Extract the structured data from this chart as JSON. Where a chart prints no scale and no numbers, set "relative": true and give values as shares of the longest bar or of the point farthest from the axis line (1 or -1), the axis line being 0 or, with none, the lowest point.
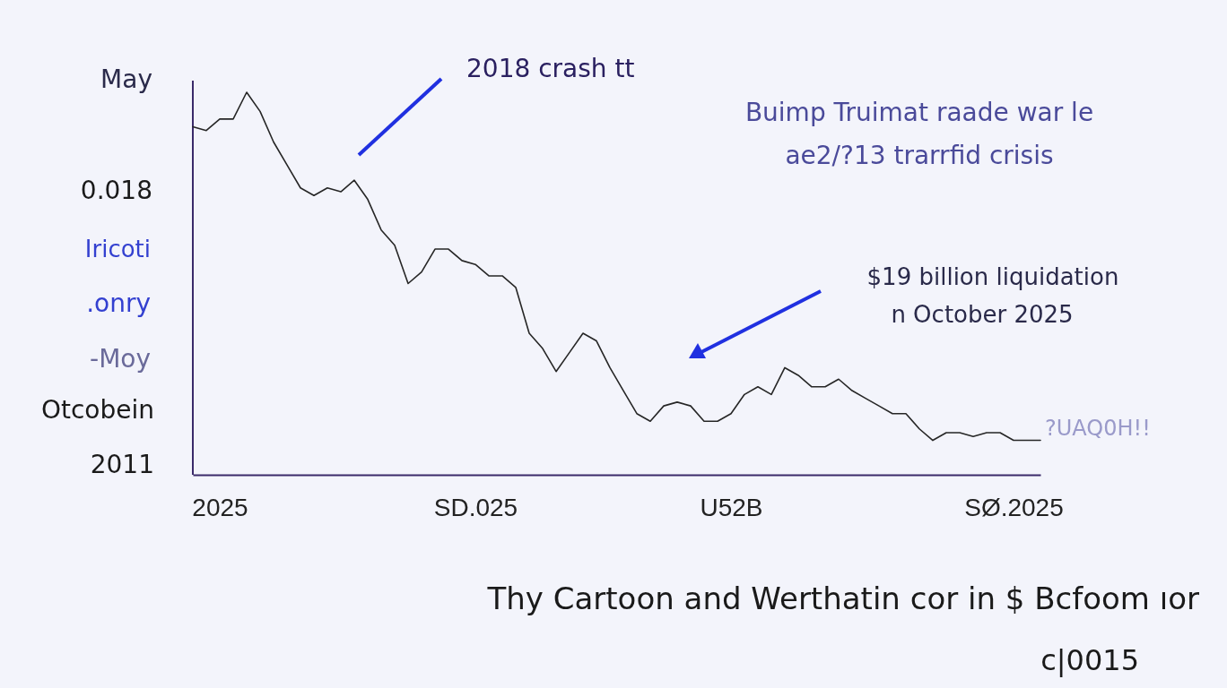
{
  "chart_data": {
    "type": "line",
    "relative": true,
    "title": "Thy Cartoon and Werthatin cor in $ Bcfoom ıor",
    "subtitle": "c|0015",
    "categories": [
      null,
      null,
      "2025",
      null,
      null,
      null,
      null,
      null,
      null,
      null,
      null,
      null,
      null,
      null,
      null,
      null,
      null,
      null,
      null,
      null,
      null,
      "SD.025",
      null,
      null,
      null,
      null,
      null,
      null,
      null,
      null,
      null,
      null,
      null,
      null,
      null,
      null,
      null,
      null,
      null,
      null,
      "U52B",
      null,
      null,
      null,
      null,
      null,
      null,
      null,
      null,
      null,
      null,
      null,
      null,
      null,
      null,
      null,
      null,
      null,
      null,
      null,
      null,
      "SØ.2025",
      null,
      null
    ],
    "series": [
      {
        "color": "#262626",
        "values": [
          0.91,
          0.9,
          0.93,
          0.93,
          1.0,
          0.95,
          0.87,
          0.81,
          0.75,
          0.73,
          0.75,
          0.74,
          0.77,
          0.72,
          0.64,
          0.6,
          0.5,
          0.53,
          0.59,
          0.59,
          0.56,
          0.55,
          0.52,
          0.52,
          0.49,
          0.37,
          0.33,
          0.27,
          0.32,
          0.37,
          0.35,
          0.28,
          0.22,
          0.16,
          0.14,
          0.18,
          0.19,
          0.18,
          0.14,
          0.14,
          0.16,
          0.21,
          0.23,
          0.21,
          0.28,
          0.26,
          0.23,
          0.23,
          0.25,
          0.22,
          0.2,
          0.18,
          0.16,
          0.16,
          0.12,
          0.09,
          0.11,
          0.11,
          0.1,
          0.11,
          0.11,
          0.09,
          0.09,
          0.09
        ]
      }
    ],
    "annotations": [
      "May",
      "0.018",
      "Iricoti",
      ".onry",
      "-Moy",
      "Otcobein",
      "2011",
      "2018 crash tt",
      "Buimp Truimat raade war le",
      "ae2/?13 trarrfid crisis",
      "$19 billion liquidation",
      "n October 2025",
      "?UAQ0H!!"
    ]
  }
}
